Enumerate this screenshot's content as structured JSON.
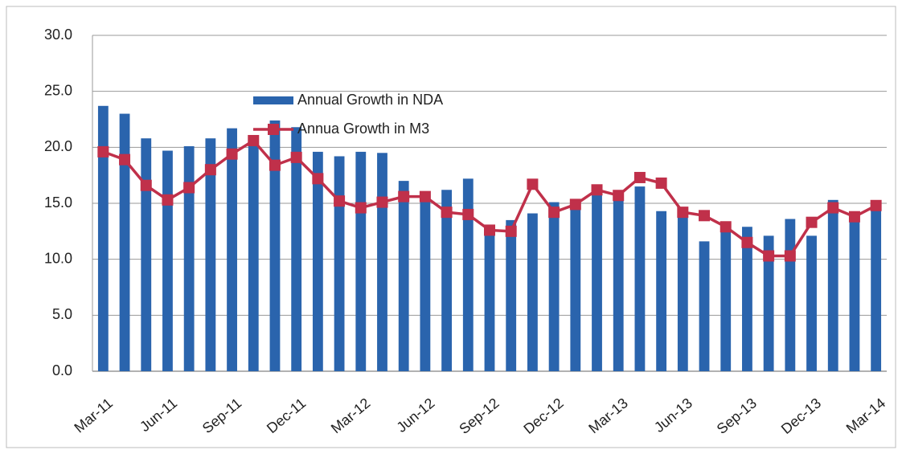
{
  "chart_data": {
    "type": "bar-line",
    "categories": [
      "Mar-11",
      null,
      null,
      "Jun-11",
      null,
      null,
      "Sep-11",
      null,
      null,
      "Dec-11",
      null,
      null,
      "Mar-12",
      null,
      null,
      "Jun-12",
      null,
      null,
      "Sep-12",
      null,
      null,
      "Dec-12",
      null,
      null,
      "Mar-13",
      null,
      null,
      "Jun-13",
      null,
      null,
      "Sep-13",
      null,
      null,
      "Dec-13",
      null,
      null,
      "Mar-14"
    ],
    "series": [
      {
        "name": "Annual Growth in NDA",
        "type": "bar",
        "color": "#2a64ad",
        "values": [
          23.7,
          23.0,
          20.8,
          19.7,
          20.1,
          20.8,
          21.7,
          20.9,
          22.4,
          21.8,
          19.6,
          19.2,
          19.6,
          19.5,
          17.0,
          15.8,
          16.2,
          17.2,
          12.7,
          13.5,
          14.1,
          15.1,
          15.0,
          15.9,
          15.7,
          16.5,
          14.3,
          14.4,
          11.6,
          12.9,
          12.9,
          12.1,
          13.6,
          12.1,
          15.3,
          13.8,
          14.9
        ]
      },
      {
        "name": "Annua Growth in M3",
        "type": "line",
        "color": "#c0304a",
        "values": [
          19.6,
          18.9,
          16.6,
          15.3,
          16.4,
          18.0,
          19.4,
          20.6,
          18.4,
          19.1,
          17.2,
          15.2,
          14.6,
          15.1,
          15.6,
          15.6,
          14.2,
          14.0,
          12.6,
          12.5,
          16.7,
          14.2,
          14.9,
          16.2,
          15.7,
          17.3,
          16.8,
          14.2,
          13.9,
          12.9,
          11.5,
          10.3,
          10.3,
          13.3,
          14.6,
          13.8,
          14.8
        ]
      }
    ],
    "ylim": [
      0,
      30
    ],
    "yticks": [
      {
        "value": 0,
        "label": "0.0"
      },
      {
        "value": 5,
        "label": "5.0"
      },
      {
        "value": 10,
        "label": "10.0"
      },
      {
        "value": 15,
        "label": "15.0"
      },
      {
        "value": 20,
        "label": "20.0"
      },
      {
        "value": 25,
        "label": "25.0"
      },
      {
        "value": 30,
        "label": "30.0"
      }
    ],
    "grid": true,
    "legend": "top-center"
  }
}
